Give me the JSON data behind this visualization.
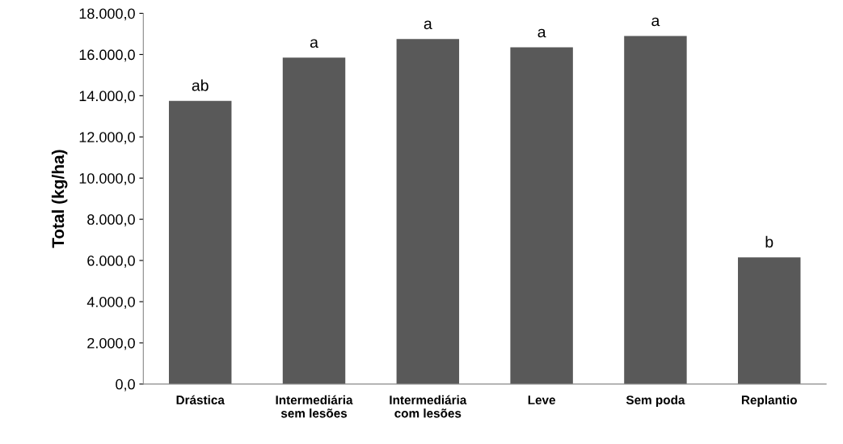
{
  "chart_data": {
    "type": "bar",
    "ylabel": "Total (kg/ha)",
    "categories": [
      "Drástica",
      "Intermediária\nsem lesões",
      "Intermediária\ncom lesões",
      "Leve",
      "Sem poda",
      "Replantio"
    ],
    "values": [
      13750,
      15850,
      16750,
      16350,
      16900,
      6150
    ],
    "color": "#595959",
    "ylim": [
      0,
      18000
    ],
    "yticks": [
      {
        "value": 0,
        "label": "0,0"
      },
      {
        "value": 2000,
        "label": "2.000,0"
      },
      {
        "value": 4000,
        "label": "4.000,0"
      },
      {
        "value": 6000,
        "label": "6.000,0"
      },
      {
        "value": 8000,
        "label": "8.000,0"
      },
      {
        "value": 10000,
        "label": "10.000,0"
      },
      {
        "value": 12000,
        "label": "12.000,0"
      },
      {
        "value": 14000,
        "label": "14.000,0"
      },
      {
        "value": 16000,
        "label": "16.000,0"
      },
      {
        "value": 18000,
        "label": "18.000,0"
      }
    ],
    "annotations": [
      {
        "text": "ab",
        "x": "Drástica",
        "y": 13750
      },
      {
        "text": "a",
        "x": "Intermediária\nsem lesões",
        "y": 15850
      },
      {
        "text": "a",
        "x": "Intermediária\ncom lesões",
        "y": 16750
      },
      {
        "text": "a",
        "x": "Leve",
        "y": 16350
      },
      {
        "text": "a",
        "x": "Sem poda",
        "y": 16900
      },
      {
        "text": "b",
        "x": "Replantio",
        "y": 6150
      }
    ],
    "grid": false,
    "legend": false
  }
}
